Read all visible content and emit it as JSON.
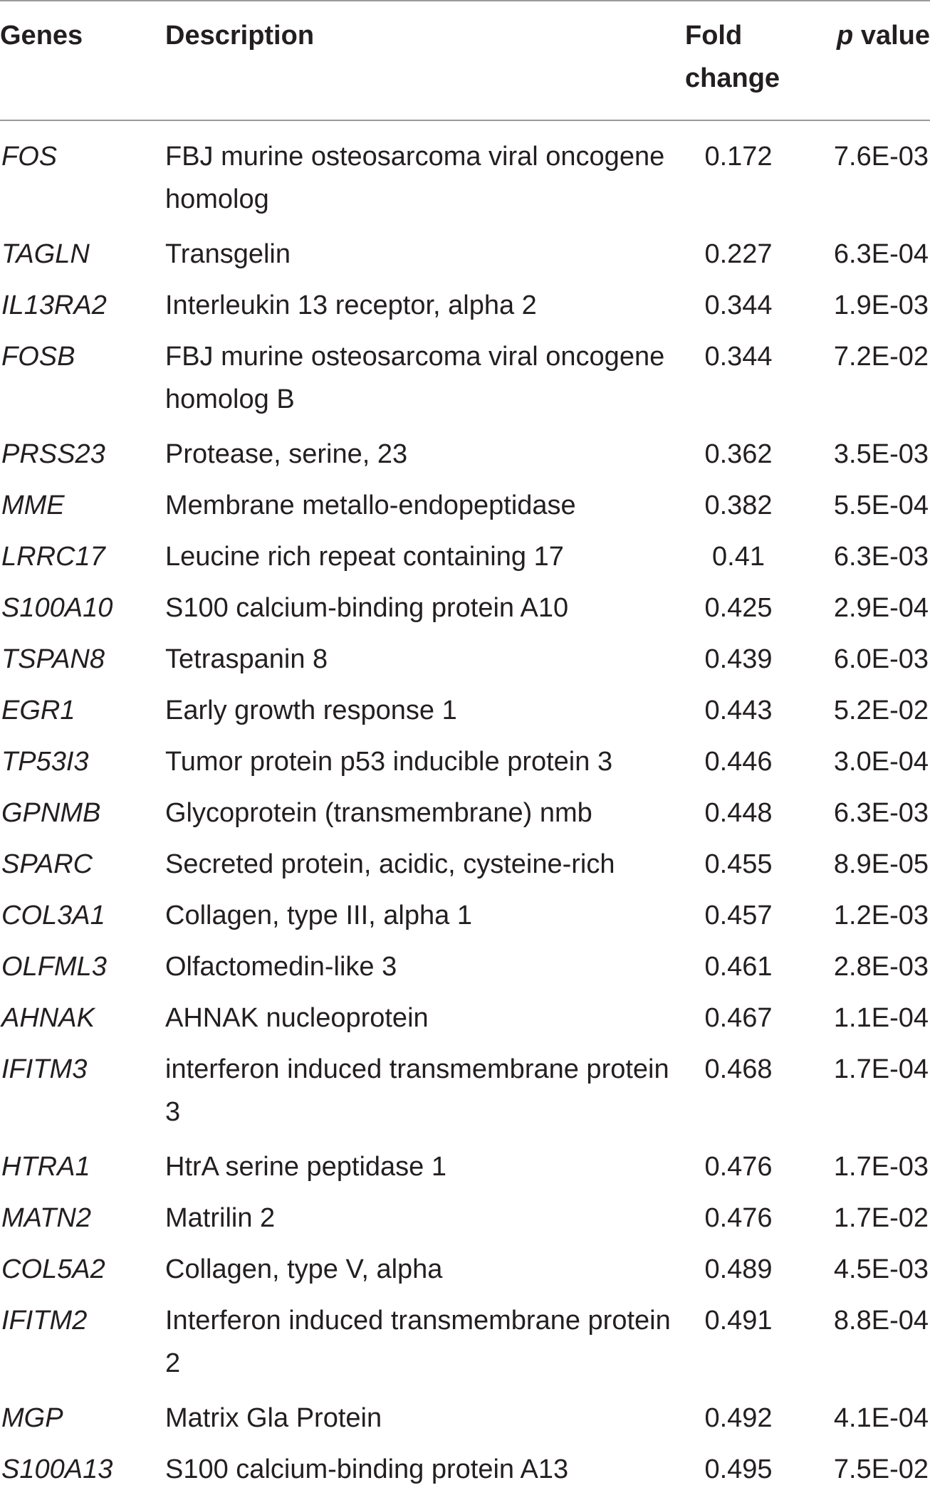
{
  "table": {
    "headers": {
      "genes": "Genes",
      "description": "Description",
      "fold_change": "Fold change",
      "p_italic": "p",
      "p_rest": " value"
    },
    "rows": [
      {
        "gene": "FOS",
        "description": "FBJ murine osteosarcoma viral oncogene homolog",
        "fold": "0.172",
        "p": "7.6E-03"
      },
      {
        "gene": "TAGLN",
        "description": "Transgelin",
        "fold": "0.227",
        "p": "6.3E-04"
      },
      {
        "gene": "IL13RA2",
        "description": "Interleukin 13 receptor, alpha 2",
        "fold": "0.344",
        "p": "1.9E-03"
      },
      {
        "gene": "FOSB",
        "description": "FBJ murine osteosarcoma viral oncogene homolog B",
        "fold": "0.344",
        "p": "7.2E-02"
      },
      {
        "gene": "PRSS23",
        "description": "Protease, serine, 23",
        "fold": "0.362",
        "p": "3.5E-03"
      },
      {
        "gene": "MME",
        "description": "Membrane metallo-endopeptidase",
        "fold": "0.382",
        "p": "5.5E-04"
      },
      {
        "gene": "LRRC17",
        "description": "Leucine rich repeat containing 17",
        "fold": "0.41",
        "p": "6.3E-03"
      },
      {
        "gene": "S100A10",
        "description": "S100 calcium-binding protein A10",
        "fold": "0.425",
        "p": "2.9E-04"
      },
      {
        "gene": "TSPAN8",
        "description": "Tetraspanin 8",
        "fold": "0.439",
        "p": "6.0E-03"
      },
      {
        "gene": "EGR1",
        "description": "Early growth response 1",
        "fold": "0.443",
        "p": "5.2E-02"
      },
      {
        "gene": "TP53I3",
        "description": "Tumor protein p53 inducible protein 3",
        "fold": "0.446",
        "p": "3.0E-04"
      },
      {
        "gene": "GPNMB",
        "description": "Glycoprotein (transmembrane) nmb",
        "fold": "0.448",
        "p": "6.3E-03"
      },
      {
        "gene": "SPARC",
        "description": "Secreted protein, acidic, cysteine-rich",
        "fold": "0.455",
        "p": "8.9E-05"
      },
      {
        "gene": "COL3A1",
        "description": "Collagen, type III, alpha 1",
        "fold": "0.457",
        "p": "1.2E-03"
      },
      {
        "gene": "OLFML3",
        "description": "Olfactomedin-like 3",
        "fold": "0.461",
        "p": "2.8E-03"
      },
      {
        "gene": "AHNAK",
        "description": "AHNAK nucleoprotein",
        "fold": "0.467",
        "p": "1.1E-04"
      },
      {
        "gene": "IFITM3",
        "description": "interferon induced transmembrane protein 3",
        "fold": "0.468",
        "p": "1.7E-04"
      },
      {
        "gene": "HTRA1",
        "description": "HtrA serine peptidase 1",
        "fold": "0.476",
        "p": "1.7E-03"
      },
      {
        "gene": "MATN2",
        "description": "Matrilin 2",
        "fold": "0.476",
        "p": "1.7E-02"
      },
      {
        "gene": "COL5A2",
        "description": "Collagen, type V, alpha",
        "fold": "0.489",
        "p": "4.5E-03"
      },
      {
        "gene": "IFITM2",
        "description": "Interferon induced transmembrane protein 2",
        "fold": "0.491",
        "p": "8.8E-04"
      },
      {
        "gene": "MGP",
        "description": "Matrix Gla Protein",
        "fold": "0.492",
        "p": "4.1E-04"
      },
      {
        "gene": "S100A13",
        "description": "S100 calcium-binding protein A13",
        "fold": "0.495",
        "p": "7.5E-02"
      }
    ]
  }
}
